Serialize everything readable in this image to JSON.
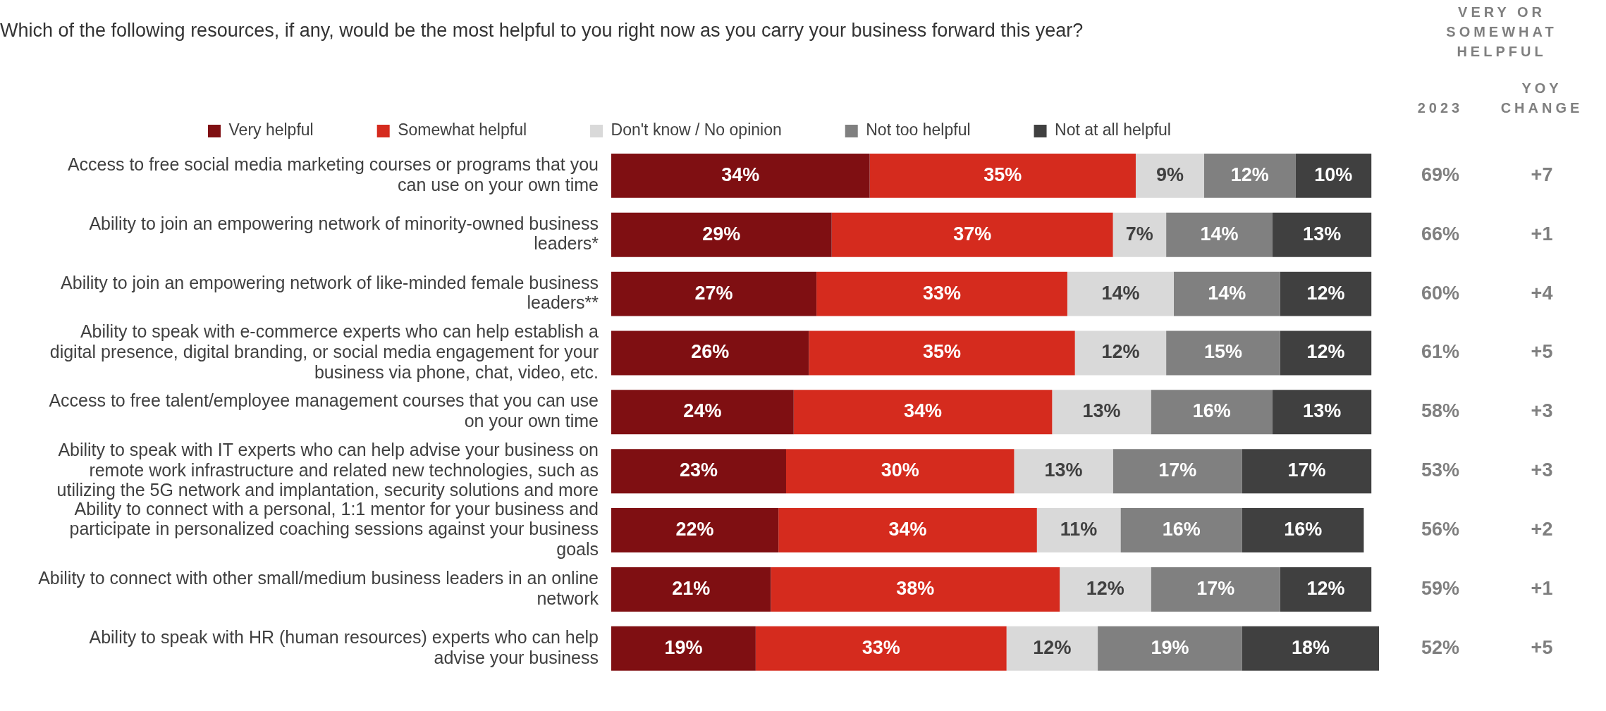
{
  "chart_data": {
    "type": "bar",
    "orientation": "horizontal",
    "stacked": true,
    "title": "Which of the following resources, if any, would be the most helpful to you right now as you carry your business forward this year?",
    "categories": [
      "Access to free social media marketing courses or programs that you can use on your own time",
      "Ability to join an empowering network of minority-owned business leaders*",
      "Ability to join an empowering network of like-minded female business leaders**",
      "Ability to speak with e-commerce experts who can help establish a digital presence, digital branding, or social media engagement for your business via phone, chat, video, etc.",
      "Access to free talent/employee management courses that you can use on your own time",
      "Ability to speak with IT experts who can help advise your business on remote work infrastructure and related new technologies, such as utilizing the 5G network and implantation, security solutions and more",
      "Ability to connect with a personal, 1:1 mentor for your business and participate in personalized coaching sessions against your business goals",
      "Ability to connect with other small/medium business leaders in an online network",
      "Ability to speak with HR (human resources) experts who can help advise your business"
    ],
    "series": [
      {
        "name": "Very helpful",
        "color": "#7f0f12",
        "values": [
          34,
          29,
          27,
          26,
          24,
          23,
          22,
          21,
          19
        ],
        "value_labels": [
          "34%",
          "29%",
          "27%",
          "26%",
          "24%",
          "23%",
          "22%",
          "21%",
          "19%"
        ]
      },
      {
        "name": "Somewhat helpful",
        "color": "#d52b1e",
        "values": [
          35,
          37,
          33,
          35,
          34,
          30,
          34,
          38,
          33
        ],
        "value_labels": [
          "35%",
          "37%",
          "33%",
          "35%",
          "34%",
          "30%",
          "34%",
          "38%",
          "33%"
        ]
      },
      {
        "name": "Don't know / No opinion",
        "color": "#d9d9d9",
        "values": [
          9,
          7,
          14,
          12,
          13,
          13,
          11,
          12,
          12
        ],
        "value_labels": [
          "9%",
          "7%",
          "14%",
          "12%",
          "13%",
          "13%",
          "11%",
          "12%",
          "12%"
        ]
      },
      {
        "name": "Not too helpful",
        "color": "#808080",
        "values": [
          12,
          14,
          14,
          15,
          16,
          17,
          16,
          17,
          19
        ],
        "value_labels": [
          "12%",
          "14%",
          "14%",
          "15%",
          "16%",
          "17%",
          "16%",
          "17%",
          "19%"
        ]
      },
      {
        "name": "Not at all helpful",
        "color": "#404040",
        "values": [
          10,
          13,
          12,
          12,
          13,
          17,
          16,
          12,
          18
        ],
        "value_labels": [
          "10%",
          "13%",
          "12%",
          "12%",
          "13%",
          "17%",
          "16%",
          "12%",
          "18%"
        ]
      }
    ],
    "xlim": [
      0,
      101
    ],
    "grid": false,
    "legend": "top",
    "tick_labels": "y",
    "annotations": [
      "VERY OR SOMEWHAT HELPFUL",
      "2023",
      "YOY CHANGE",
      "69%",
      "+7",
      "66%",
      "+1",
      "60%",
      "+4",
      "61%",
      "+5",
      "58%",
      "+3",
      "53%",
      "+3",
      "56%",
      "+2",
      "59%",
      "+1",
      "52%",
      "+5"
    ]
  }
}
